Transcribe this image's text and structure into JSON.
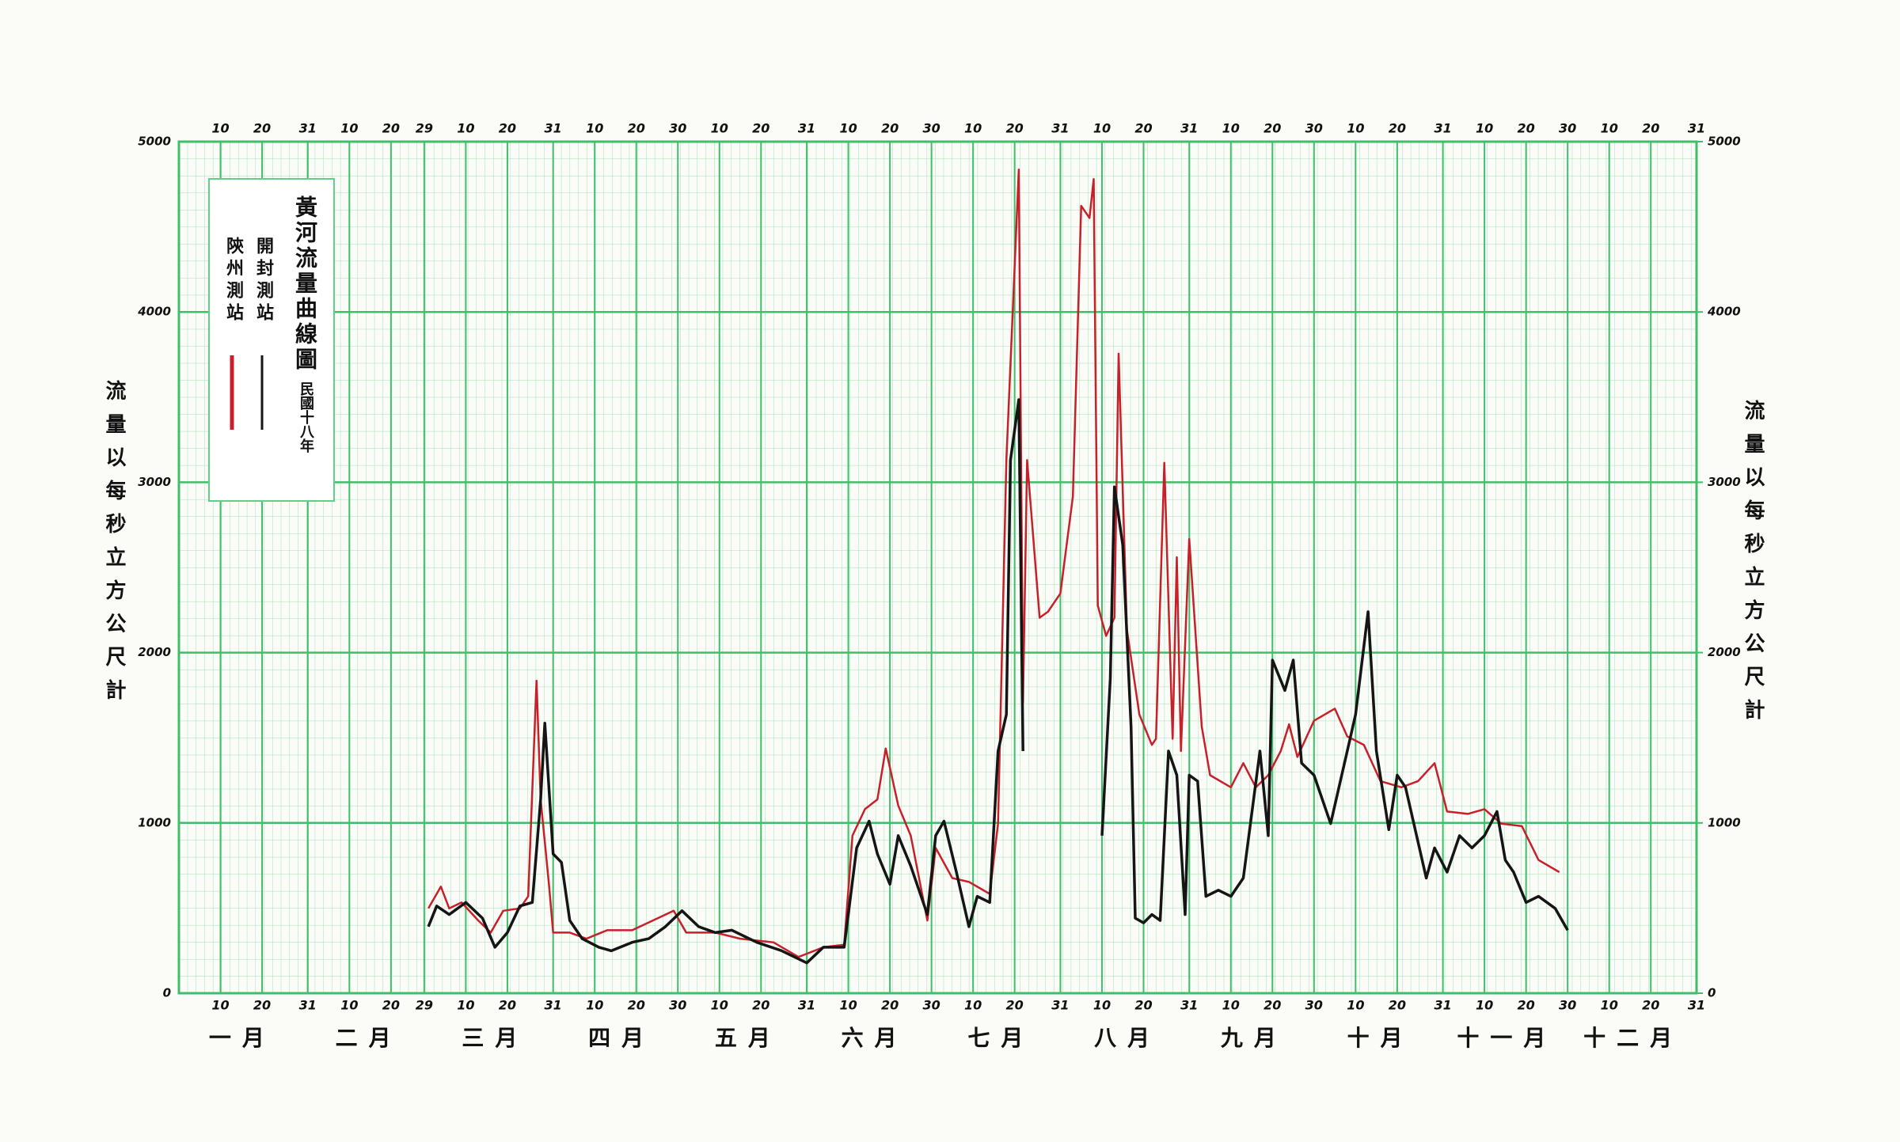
{
  "chart_data": {
    "type": "line",
    "title": "黃河流量曲線圖",
    "subtitle": "民國十八年",
    "y_label": "流量以每秒立方公尺計",
    "y2_label": "流量以每秒立方公尺計",
    "months": [
      "一月",
      "二月",
      "三月",
      "四月",
      "五月",
      "六月",
      "七月",
      "八月",
      "九月",
      "十月",
      "十一月",
      "十二月"
    ],
    "xlim": [
      0,
      365
    ],
    "xticks": [
      {
        "value": 10,
        "label": "10"
      },
      {
        "value": 20,
        "label": "20"
      },
      {
        "value": 31,
        "label": "31"
      },
      {
        "value": 41,
        "label": "10"
      },
      {
        "value": 51,
        "label": "20"
      },
      {
        "value": 59,
        "label": "29"
      },
      {
        "value": 69,
        "label": "10"
      },
      {
        "value": 79,
        "label": "20"
      },
      {
        "value": 90,
        "label": "31"
      },
      {
        "value": 100,
        "label": "10"
      },
      {
        "value": 110,
        "label": "20"
      },
      {
        "value": 120,
        "label": "30"
      },
      {
        "value": 130,
        "label": "10"
      },
      {
        "value": 140,
        "label": "20"
      },
      {
        "value": 151,
        "label": "31"
      },
      {
        "value": 161,
        "label": "10"
      },
      {
        "value": 171,
        "label": "20"
      },
      {
        "value": 181,
        "label": "30"
      },
      {
        "value": 191,
        "label": "10"
      },
      {
        "value": 201,
        "label": "20"
      },
      {
        "value": 212,
        "label": "31"
      },
      {
        "value": 222,
        "label": "10"
      },
      {
        "value": 232,
        "label": "20"
      },
      {
        "value": 243,
        "label": "31"
      },
      {
        "value": 253,
        "label": "10"
      },
      {
        "value": 263,
        "label": "20"
      },
      {
        "value": 273,
        "label": "30"
      },
      {
        "value": 283,
        "label": "10"
      },
      {
        "value": 293,
        "label": "20"
      },
      {
        "value": 304,
        "label": "31"
      },
      {
        "value": 314,
        "label": "10"
      },
      {
        "value": 324,
        "label": "20"
      },
      {
        "value": 334,
        "label": "30"
      },
      {
        "value": 344,
        "label": "10"
      },
      {
        "value": 354,
        "label": "20"
      },
      {
        "value": 365,
        "label": "31"
      }
    ],
    "ylim": [
      0,
      5000
    ],
    "yticks": [
      0,
      1000,
      2000,
      3000,
      4000,
      5000
    ],
    "y2lim": [
      0,
      5000
    ],
    "y2ticks": [
      0,
      1000,
      2000,
      3000,
      4000,
      5000
    ],
    "grid": true,
    "series": [
      {
        "name": "開封測站",
        "color": "#151515",
        "x": [
          60,
          62,
          65,
          69,
          73,
          76,
          79,
          82,
          85,
          87,
          88,
          90,
          92,
          94,
          97,
          101,
          104,
          109,
          113,
          117,
          121,
          125,
          129,
          133,
          139,
          145,
          151,
          155,
          160,
          163,
          166,
          168,
          171,
          173,
          176,
          180,
          182,
          184,
          187,
          190,
          192,
          195,
          197,
          199,
          200,
          202,
          203,
          212,
          222,
          224,
          225,
          227,
          229,
          230,
          232,
          234,
          236,
          238,
          240,
          242,
          243,
          245,
          247,
          250,
          253,
          256,
          260,
          262,
          263,
          266,
          268,
          270,
          273,
          277,
          281,
          283,
          286,
          288,
          291,
          293,
          295,
          297,
          300,
          302,
          305,
          308,
          311,
          314,
          317,
          319,
          321,
          324,
          327,
          331,
          334
        ],
        "values": [
          391,
          512,
          462,
          533,
          441,
          270,
          356,
          512,
          533,
          1138,
          1586,
          818,
          768,
          427,
          320,
          270,
          249,
          299,
          320,
          391,
          484,
          391,
          356,
          370,
          299,
          249,
          178,
          270,
          270,
          853,
          1010,
          818,
          640,
          925,
          747,
          462,
          925,
          1010,
          711,
          391,
          569,
          533,
          1422,
          1636,
          3130,
          3485,
          1422,
          null,
          925,
          1849,
          2973,
          2632,
          1565,
          441,
          413,
          462,
          427,
          1422,
          1280,
          462,
          1280,
          1245,
          569,
          605,
          569,
          676,
          1422,
          925,
          1956,
          1778,
          1956,
          1351,
          1280,
          996,
          1422,
          1636,
          2240,
          1422,
          960,
          1280,
          1209,
          996,
          676,
          853,
          711,
          925,
          853,
          925,
          1067,
          782,
          711,
          533,
          569,
          498,
          370
        ]
      },
      {
        "name": "陝州測站",
        "color": "#c8202a",
        "x": [
          60,
          63,
          65,
          68,
          72,
          75,
          78,
          82,
          84,
          86,
          87,
          89,
          90,
          94,
          98,
          103,
          109,
          114,
          119,
          122,
          129,
          135,
          143,
          149,
          155,
          160,
          162,
          165,
          168,
          170,
          173,
          176,
          180,
          182,
          186,
          190,
          195,
          197,
          199,
          202,
          203,
          204,
          207,
          209,
          212,
          215,
          217,
          219,
          220,
          221,
          223,
          225,
          226,
          228,
          231,
          234,
          235,
          237,
          239,
          240,
          241,
          243,
          246,
          248,
          253,
          256,
          259,
          262,
          265,
          267,
          269,
          273,
          278,
          281,
          285,
          289,
          294,
          298,
          302,
          305,
          310,
          314,
          318,
          323,
          327,
          332
        ],
        "values": [
          498,
          626,
          498,
          533,
          427,
          356,
          484,
          498,
          569,
          1835,
          1138,
          640,
          356,
          356,
          320,
          370,
          370,
          427,
          484,
          356,
          356,
          320,
          299,
          213,
          270,
          285,
          925,
          1081,
          1138,
          1437,
          1102,
          925,
          427,
          853,
          676,
          654,
          583,
          996,
          3130,
          4836,
          1707,
          3130,
          2205,
          2240,
          2347,
          2916,
          4623,
          4552,
          4780,
          2276,
          2098,
          2205,
          3755,
          2134,
          1636,
          1458,
          1494,
          3115,
          1494,
          2560,
          1422,
          2667,
          1565,
          1280,
          1209,
          1351,
          1209,
          1280,
          1422,
          1579,
          1387,
          1600,
          1671,
          1508,
          1458,
          1245,
          1209,
          1245,
          1351,
          1067,
          1053,
          1081,
          996,
          981,
          782,
          711
        ]
      }
    ]
  }
}
